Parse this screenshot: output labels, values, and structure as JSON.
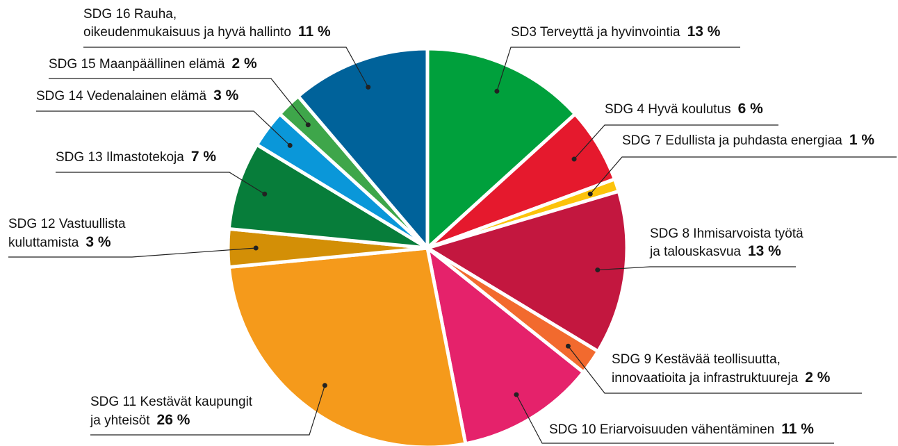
{
  "chart_data": {
    "type": "pie",
    "categories": [
      [
        "SD3 Terveyttä ja hyvinvointia"
      ],
      [
        "SDG 4 Hyvä koulutus"
      ],
      [
        "SDG 7 Edullista ja puhdasta energiaa"
      ],
      [
        "SDG 8 Ihmisarvoista työtä",
        "ja talouskasvua"
      ],
      [
        "SDG 9 Kestävää teollisuutta,",
        "innovaatioita ja infrastruktuureja"
      ],
      [
        "SDG 10 Eriarvoisuuden vähentäminen"
      ],
      [
        "SDG 11 Kestävät kaupungit",
        "ja yhteisöt"
      ],
      [
        "SDG 12 Vastuullista",
        "kuluttamista"
      ],
      [
        "SDG 13 Ilmastotekoja"
      ],
      [
        "SDG 14 Vedenalainen elämä"
      ],
      [
        "SDG 15 Maanpäällinen elämä"
      ],
      [
        "SDG 16 Rauha,",
        "oikeudenmukaisuus ja hyvä hallinto"
      ]
    ],
    "values": [
      13,
      6,
      1,
      13,
      2,
      11,
      26,
      3,
      7,
      3,
      2,
      11
    ],
    "value_labels": [
      "13 %",
      "6 %",
      "1 %",
      "13 %",
      "2 %",
      "11 %",
      "26 %",
      "3 %",
      "7 %",
      "3 %",
      "2 %",
      "11 %"
    ],
    "colors": [
      "#00a03c",
      "#e5192d",
      "#fcc30b",
      "#c3173f",
      "#f26a2e",
      "#e5226b",
      "#f59a1b",
      "#d38f06",
      "#077d3a",
      "#0a97d9",
      "#3ea64a",
      "#00629a"
    ]
  }
}
